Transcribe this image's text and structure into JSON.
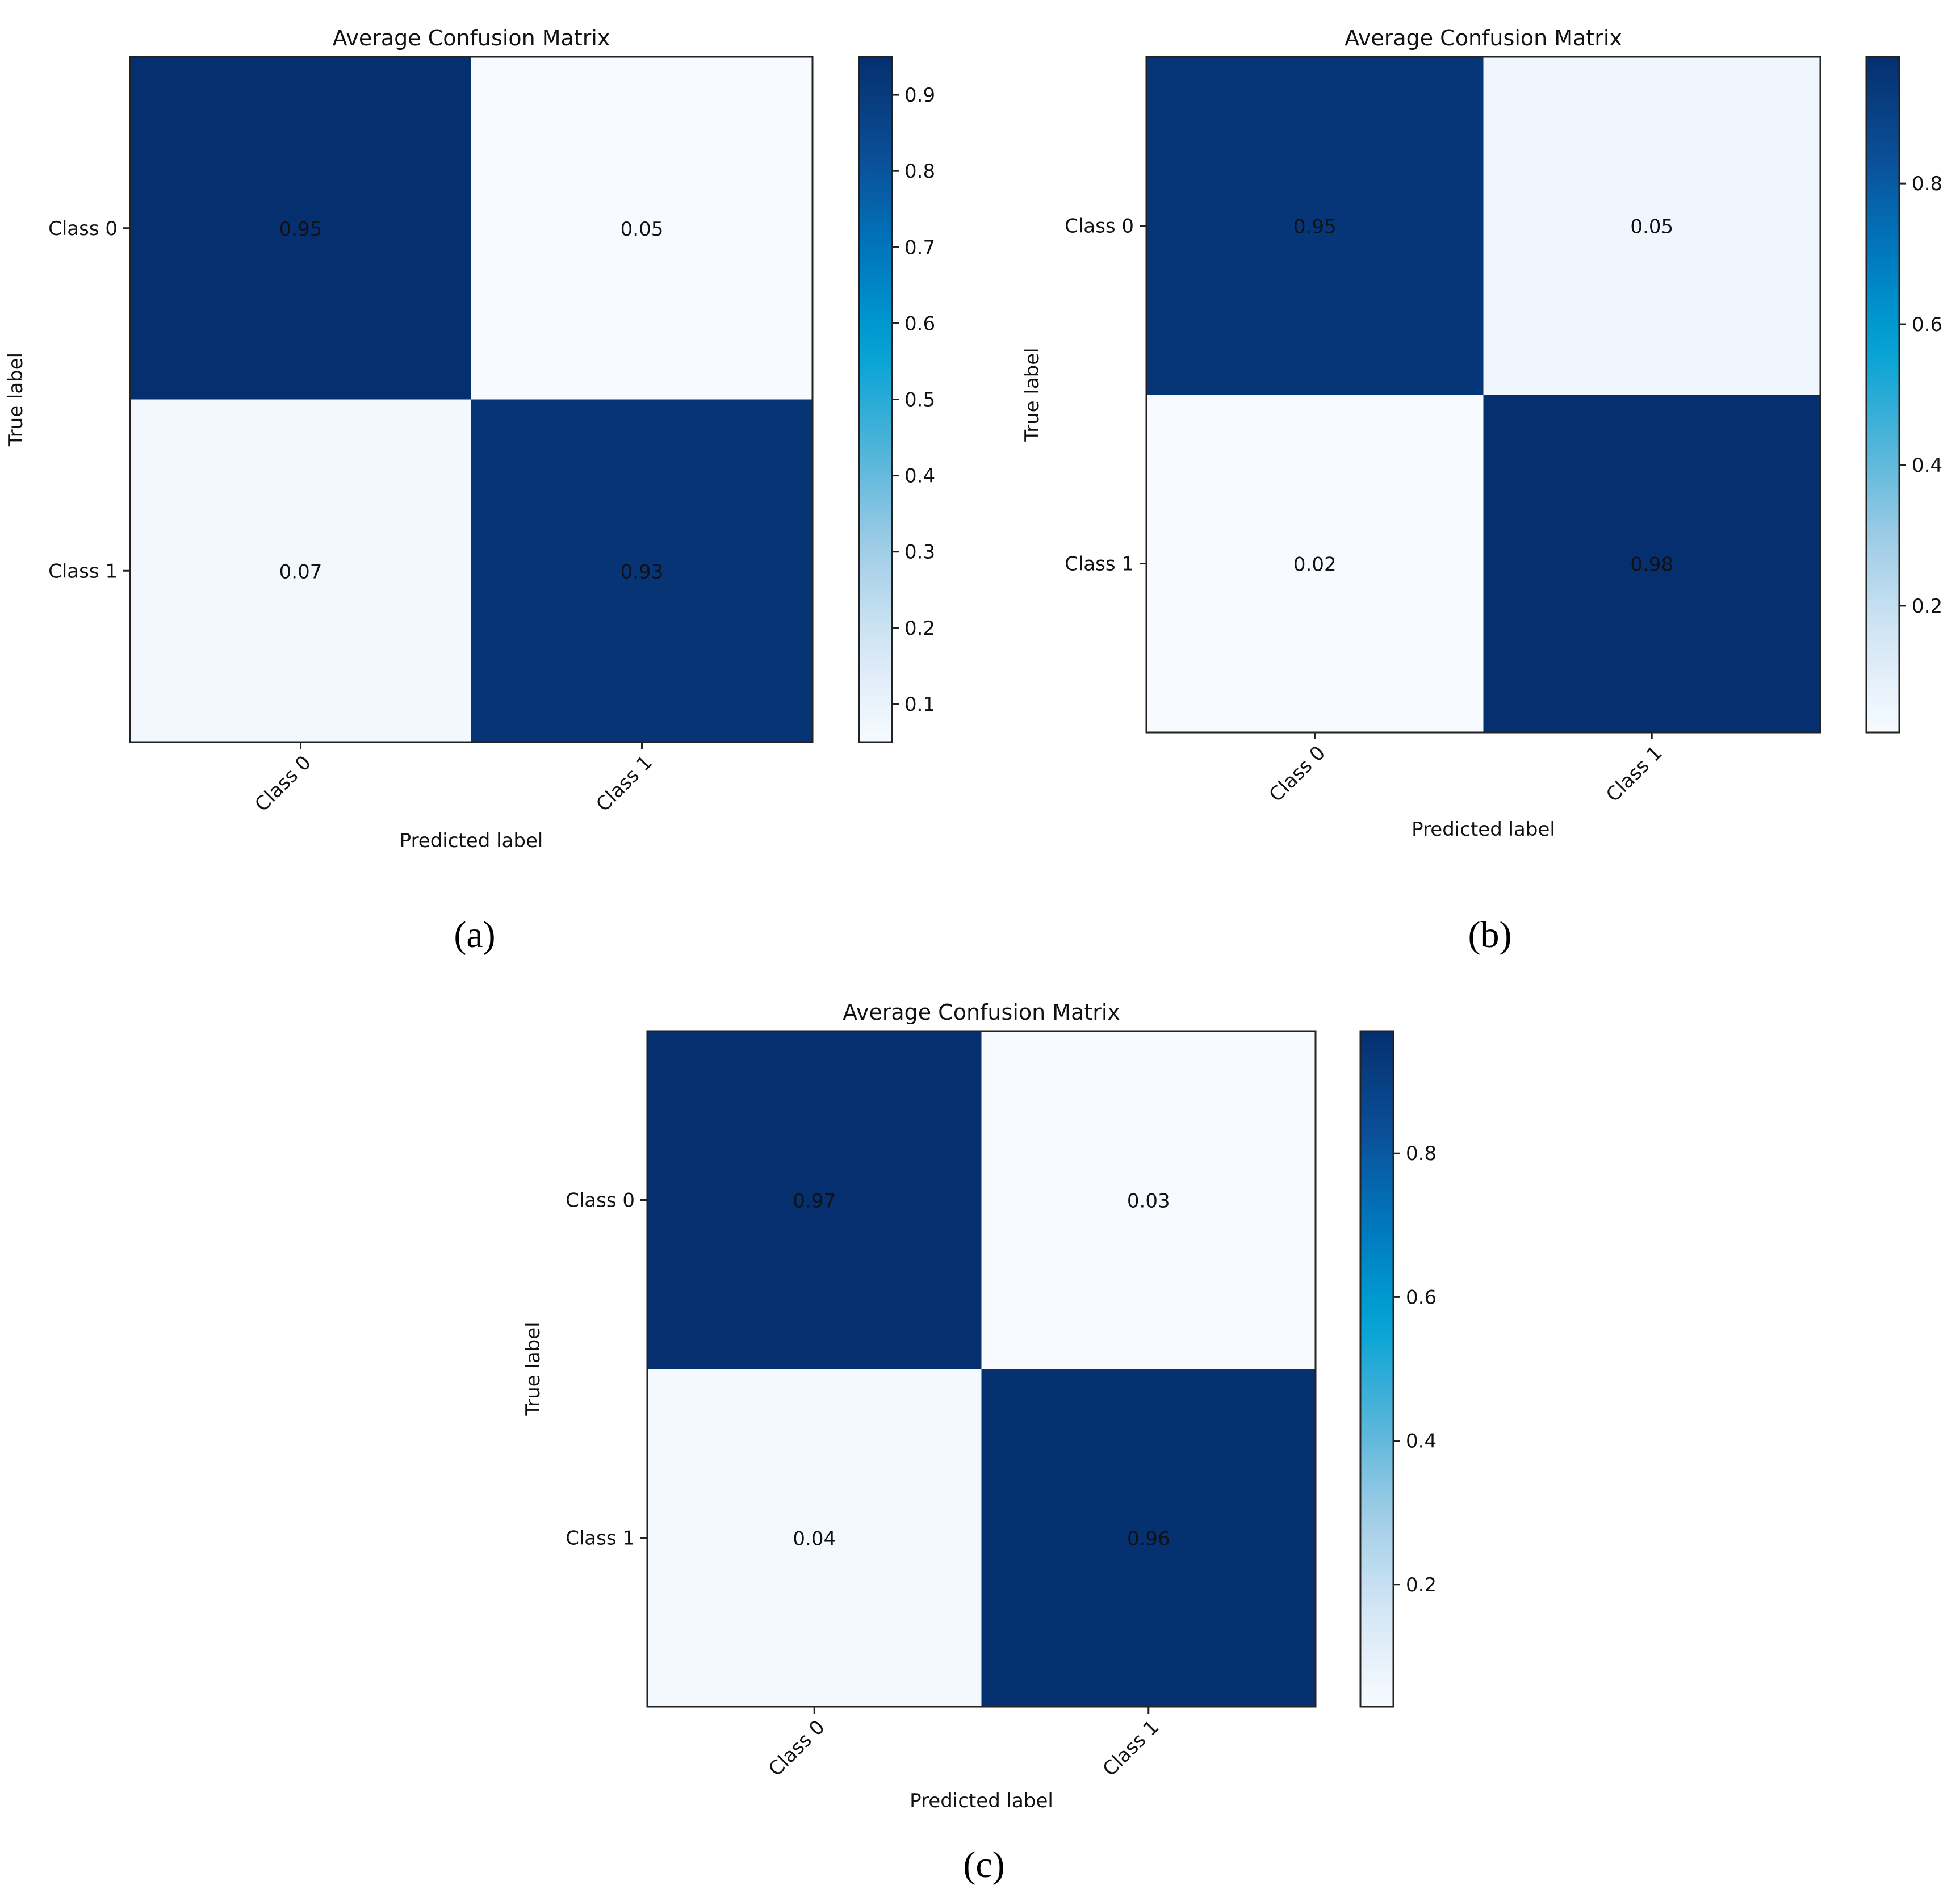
{
  "chart_data": [
    {
      "panel": "a",
      "type": "heatmap",
      "title": "Average Confusion Matrix",
      "xlabel": "Predicted label",
      "ylabel": "True label",
      "x_tick_labels": [
        "Class 0",
        "Class 1"
      ],
      "y_tick_labels": [
        "Class 0",
        "Class 1"
      ],
      "matrix": [
        [
          0.95,
          0.05
        ],
        [
          0.07,
          0.93
        ]
      ],
      "cell_labels": [
        [
          "0.95",
          "0.05"
        ],
        [
          "0.07",
          "0.93"
        ]
      ],
      "colorbar": {
        "min": 0.05,
        "max": 0.95,
        "ticks": [
          0.1,
          0.2,
          0.3,
          0.4,
          0.5,
          0.6,
          0.7,
          0.8,
          0.9
        ],
        "tick_labels": [
          "0.1",
          "0.2",
          "0.3",
          "0.4",
          "0.5",
          "0.6",
          "0.7",
          "0.8",
          "0.9"
        ]
      },
      "colormap": "Blues",
      "caption": "(a)"
    },
    {
      "panel": "b",
      "type": "heatmap",
      "title": "Average Confusion Matrix",
      "xlabel": "Predicted label",
      "ylabel": "True label",
      "x_tick_labels": [
        "Class 0",
        "Class 1"
      ],
      "y_tick_labels": [
        "Class 0",
        "Class 1"
      ],
      "matrix": [
        [
          0.95,
          0.05
        ],
        [
          0.02,
          0.98
        ]
      ],
      "cell_labels": [
        [
          "0.95",
          "0.05"
        ],
        [
          "0.02",
          "0.98"
        ]
      ],
      "colorbar": {
        "min": 0.02,
        "max": 0.98,
        "ticks": [
          0.2,
          0.4,
          0.6,
          0.8
        ],
        "tick_labels": [
          "0.2",
          "0.4",
          "0.6",
          "0.8"
        ]
      },
      "colormap": "Blues",
      "caption": "(b)"
    },
    {
      "panel": "c",
      "type": "heatmap",
      "title": "Average Confusion Matrix",
      "xlabel": "Predicted label",
      "ylabel": "True label",
      "x_tick_labels": [
        "Class 0",
        "Class 1"
      ],
      "y_tick_labels": [
        "Class 0",
        "Class 1"
      ],
      "matrix": [
        [
          0.97,
          0.03
        ],
        [
          0.04,
          0.96
        ]
      ],
      "cell_labels": [
        [
          "0.97",
          "0.03"
        ],
        [
          "0.04",
          "0.96"
        ]
      ],
      "colorbar": {
        "min": 0.03,
        "max": 0.97,
        "ticks": [
          0.2,
          0.4,
          0.6,
          0.8
        ],
        "tick_labels": [
          "0.2",
          "0.4",
          "0.6",
          "0.8"
        ]
      },
      "colormap": "Blues",
      "caption": "(c)"
    }
  ],
  "colors": {
    "cmap_stops": [
      "#f7fbff",
      "#d4e6f5",
      "#9fcde6",
      "#4fb3d9",
      "#00a3d4",
      "#0077be",
      "#0b4d96",
      "#052f6e"
    ],
    "text": "#111111",
    "frame": "#222222"
  }
}
